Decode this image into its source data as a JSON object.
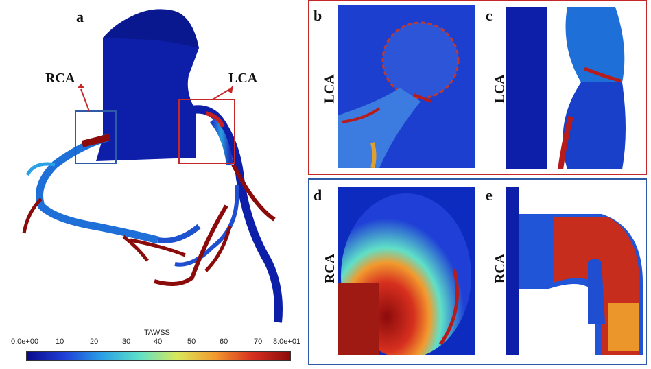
{
  "panels": {
    "a": {
      "letter": "a",
      "labels": {
        "rca": "RCA",
        "lca": "LCA"
      }
    },
    "b": {
      "letter": "b",
      "side_label": "LCA"
    },
    "c": {
      "letter": "c",
      "side_label": "LCA"
    },
    "d": {
      "letter": "d",
      "side_label": "RCA"
    },
    "e": {
      "letter": "e",
      "side_label": "RCA"
    }
  },
  "colorbar": {
    "title": "TAWSS",
    "ticks": [
      "0.0e+00",
      "10",
      "20",
      "30",
      "40",
      "50",
      "60",
      "70",
      "8.0e+01"
    ],
    "colors": [
      "#0a0a8c",
      "#1f3fd6",
      "#2aa0e6",
      "#5fe0c8",
      "#d9e85a",
      "#f29a2e",
      "#d7301f",
      "#8b0b0b"
    ]
  },
  "frame_colors": {
    "lca_box": "#c62828",
    "rca_box": "#2f5aa6"
  }
}
